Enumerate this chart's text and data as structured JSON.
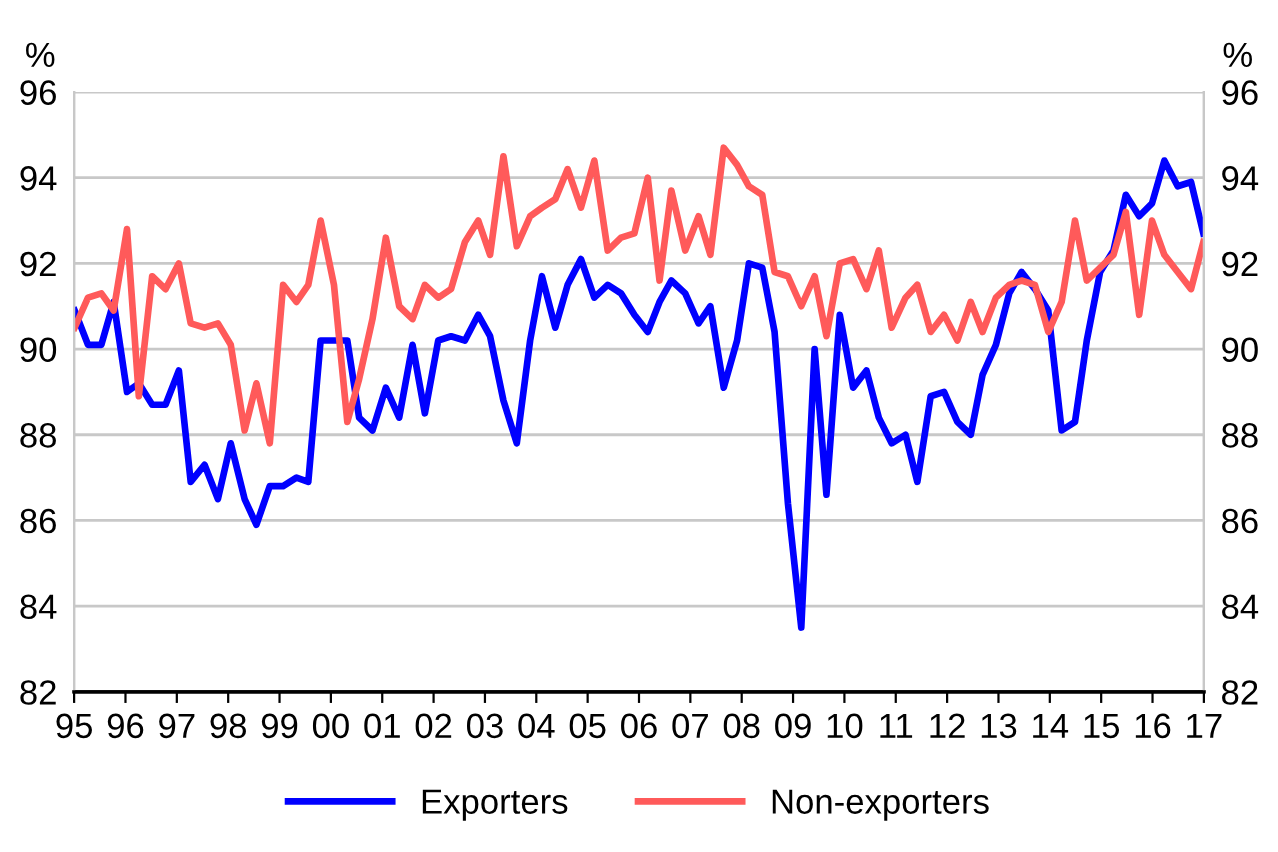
{
  "chart_data": {
    "type": "line",
    "x": [
      1995.01,
      1995.27,
      1995.53,
      1995.77,
      1996.03,
      1996.26,
      1996.52,
      1996.78,
      1997.04,
      1997.27,
      1997.54,
      1997.8,
      1998.05,
      1998.32,
      1998.55,
      1998.81,
      1999.07,
      1999.33,
      1999.56,
      1999.8,
      2000.06,
      2000.32,
      2000.55,
      2000.81,
      2001.07,
      2001.33,
      2001.59,
      2001.83,
      2002.09,
      2002.34,
      2002.61,
      2002.87,
      2003.1,
      2003.36,
      2003.62,
      2003.88,
      2004.11,
      2004.37,
      2004.61,
      2004.87,
      2005.13,
      2005.39,
      2005.65,
      2005.91,
      2006.17,
      2006.4,
      2006.63,
      2006.9,
      2007.16,
      2007.39,
      2007.65,
      2007.91,
      2008.14,
      2008.4,
      2008.64,
      2008.9,
      2009.16,
      2009.42,
      2009.65,
      2009.91,
      2010.17,
      2010.43,
      2010.67,
      2010.92,
      2011.19,
      2011.42,
      2011.68,
      2011.94,
      2012.2,
      2012.46,
      2012.69,
      2012.95,
      2013.21,
      2013.45,
      2013.71,
      2013.97,
      2014.23,
      2014.49,
      2014.72,
      2014.98,
      2015.24,
      2015.48,
      2015.74,
      2015.99,
      2016.23,
      2016.49,
      2016.75,
      2016.99
    ],
    "series": [
      {
        "name": "Exporters",
        "color": "#0000ff",
        "values": [
          90.9,
          90.1,
          90.1,
          91.1,
          89.0,
          89.2,
          88.7,
          88.7,
          89.5,
          86.9,
          87.3,
          86.5,
          87.8,
          86.5,
          85.9,
          86.8,
          86.8,
          87.0,
          86.9,
          90.2,
          90.2,
          90.2,
          88.4,
          88.1,
          89.1,
          88.4,
          90.1,
          88.5,
          90.2,
          90.3,
          90.2,
          90.8,
          90.3,
          88.8,
          87.8,
          90.2,
          91.7,
          90.5,
          91.5,
          92.1,
          91.2,
          91.5,
          91.3,
          90.8,
          90.4,
          91.1,
          91.6,
          91.3,
          90.6,
          91.0,
          89.1,
          90.2,
          92.0,
          91.9,
          90.4,
          86.4,
          83.5,
          90.0,
          86.6,
          90.8,
          89.1,
          89.5,
          88.4,
          87.8,
          88.0,
          86.9,
          88.9,
          89.0,
          88.3,
          88.0,
          89.4,
          90.1,
          91.3,
          91.8,
          91.4,
          90.9,
          88.1,
          88.3,
          90.2,
          91.8,
          92.3,
          93.6,
          93.1,
          93.4,
          94.4,
          93.8,
          93.9,
          92.7
        ]
      },
      {
        "name": "Non-exporters",
        "color": "#ff5a5a",
        "values": [
          90.5,
          91.2,
          91.3,
          90.9,
          92.8,
          88.9,
          91.7,
          91.4,
          92.0,
          90.6,
          90.5,
          90.6,
          90.1,
          88.1,
          89.2,
          87.8,
          91.5,
          91.1,
          91.5,
          93.0,
          91.5,
          88.3,
          89.3,
          90.7,
          92.6,
          91.0,
          90.7,
          91.5,
          91.2,
          91.4,
          92.5,
          93.0,
          92.2,
          94.5,
          92.4,
          93.1,
          93.3,
          93.5,
          94.2,
          93.3,
          94.4,
          92.3,
          92.6,
          92.7,
          94.0,
          91.6,
          93.7,
          92.3,
          93.1,
          92.2,
          94.7,
          94.3,
          93.8,
          93.6,
          91.8,
          91.7,
          91.0,
          91.7,
          90.3,
          92.0,
          92.1,
          91.4,
          92.3,
          90.5,
          91.2,
          91.5,
          90.4,
          90.8,
          90.2,
          91.1,
          90.4,
          91.2,
          91.5,
          91.6,
          91.5,
          90.4,
          91.1,
          93.0,
          91.6,
          91.9,
          92.2,
          93.2,
          90.8,
          93.0,
          92.2,
          91.8,
          91.4,
          92.5
        ]
      }
    ],
    "xlim": [
      1995,
      2017
    ],
    "xticks": [
      {
        "value": 1995,
        "label": "95"
      },
      {
        "value": 1996,
        "label": "96"
      },
      {
        "value": 1997,
        "label": "97"
      },
      {
        "value": 1998,
        "label": "98"
      },
      {
        "value": 1999,
        "label": "99"
      },
      {
        "value": 2000,
        "label": "00"
      },
      {
        "value": 2001,
        "label": "01"
      },
      {
        "value": 2002,
        "label": "02"
      },
      {
        "value": 2003,
        "label": "03"
      },
      {
        "value": 2004,
        "label": "04"
      },
      {
        "value": 2005,
        "label": "05"
      },
      {
        "value": 2006,
        "label": "06"
      },
      {
        "value": 2007,
        "label": "07"
      },
      {
        "value": 2008,
        "label": "08"
      },
      {
        "value": 2009,
        "label": "09"
      },
      {
        "value": 2010,
        "label": "10"
      },
      {
        "value": 2011,
        "label": "11"
      },
      {
        "value": 2012,
        "label": "12"
      },
      {
        "value": 2013,
        "label": "13"
      },
      {
        "value": 2014,
        "label": "14"
      },
      {
        "value": 2015,
        "label": "15"
      },
      {
        "value": 2016,
        "label": "16"
      },
      {
        "value": 2017,
        "label": "17"
      }
    ],
    "ylim": [
      82,
      96
    ],
    "yticks": [
      82,
      84,
      86,
      88,
      90,
      92,
      94,
      96
    ],
    "y2lim": [
      82,
      96
    ],
    "y2ticks": [
      82,
      84,
      86,
      88,
      90,
      92,
      94,
      96
    ],
    "ylabel": "%",
    "y2label": "%",
    "grid": "y",
    "legend": "bottom",
    "marker": "none",
    "line_style": "solid"
  }
}
